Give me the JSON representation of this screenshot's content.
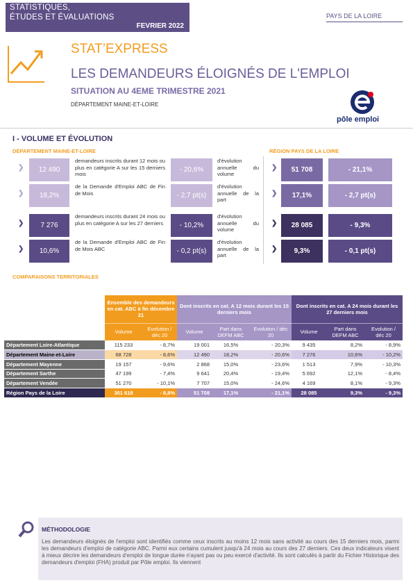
{
  "header": {
    "brand_line1": "STATISTIQUES,",
    "brand_line2": "ÉTUDES ET ÉVALUATIONS",
    "date": "FEVRIER 2022",
    "region": "PAYS DE LA LOIRE",
    "series": "STAT’EXPRESS",
    "title": "LES DEMANDEURS ÉLOIGNÉS DE L'EMPLOI",
    "subtitle": "SITUATION AU 4EME TRIMESTRE 2021",
    "department": "DÉPARTEMENT MAINE-ET-LOIRE",
    "logo": "pôle emploi"
  },
  "section": {
    "title": "I - VOLUME ET ÉVOLUTION",
    "dept_label": "DÉPARTEMENT MAINE-ET-LOIRE",
    "region_label": "RÉGION PAYS DE LA LOIRE",
    "kpis": [
      {
        "value": "12 490",
        "description": "demandeurs inscrits durant 12 mois ou plus en catégorie A sur les 15 derniers mois",
        "change": "- 20,6%",
        "change_label": "d'évolution annuelle du volume",
        "region_value": "51 708",
        "region_change": "- 21,1%"
      },
      {
        "value": "18,2%",
        "description": "de la Demande d'Emploi ABC de Fin de Mois",
        "change": "- 2,7 pt(s)",
        "change_label": "d'évolution annuelle de la part",
        "region_value": "17,1%",
        "region_change": "- 2,7 pt(s)"
      },
      {
        "value": "7 276",
        "description": "demandeurs inscrits durant 24 mois ou plus en catégorie A sur les 27 derniers",
        "change": "- 10,2%",
        "change_label": "d'évolution annuelle du volume",
        "region_value": "28 085",
        "region_change": "- 9,3%"
      },
      {
        "value": "10,6%",
        "description": "de la Demande d'Emploi ABC de Fin de Mois ABC",
        "change": "- 0,2 pt(s)",
        "change_label": "d'évolution annuelle de la part",
        "region_value": "9,3%",
        "region_change": "- 0,1 pt(s)"
      }
    ]
  },
  "comparisons": {
    "title": "COMPARAISONS TERRITORIALES",
    "groups": [
      "Ensemble des demandeurs en cat. ABC à fin décembre 21",
      "Dont inscrits en cat. A 12 mois durant les 15 derniers mois",
      "Dont inscrits en cat. A 24 mois durant les 27 derniers mois"
    ],
    "columns": [
      "Volume",
      "Evolution / déc 20",
      "Volume",
      "Part dans DEFM ABC",
      "Evolution / déc 20",
      "Volume",
      "Part dans DEFM ABC",
      "Evolution / déc 20"
    ],
    "rows": [
      [
        "Département Loire-Atlantique",
        "115 233",
        "- 8,7%",
        "19 001",
        "16,5%",
        "- 20,3%",
        "9 435",
        "8,2%",
        "- 8,9%"
      ],
      [
        "Département Maine-et-Loire",
        "68 728",
        "- 8,6%",
        "12 490",
        "18,2%",
        "- 20,6%",
        "7 276",
        "10,6%",
        "- 10,2%"
      ],
      [
        "Département Mayenne",
        "19 157",
        "- 9,6%",
        "2 868",
        "15,0%",
        "- 23,6%",
        "1 513",
        "7,9%",
        "- 10,3%"
      ],
      [
        "Département Sarthe",
        "47 199",
        "- 7,4%",
        "9 641",
        "20,4%",
        "- 19,4%",
        "5 692",
        "12,1%",
        "- 8,4%"
      ],
      [
        "Département Vendée",
        "51 270",
        "- 10,1%",
        "7 707",
        "15,0%",
        "- 24,6%",
        "4 169",
        "8,1%",
        "- 9,3%"
      ],
      [
        "Région Pays de la Loire",
        "301 618",
        "- 8,8%",
        "51 708",
        "17,1%",
        "- 21,1%",
        "28 085",
        "9,3%",
        "- 9,3%"
      ]
    ]
  },
  "methodology": {
    "title": "MÉTHODOLOGIE",
    "text": "Les demandeurs éloignés de l'emploi sont identifiés comme ceux inscrits au moins 12 mois sans activité au cours des 15 derniers mois, parmi les demandeurs d'emploi de catégorie ABC. Parmi eux certains cumulent jusqu'à 24 mois au cours des 27 derniers. Ces deux indicateurs visent à mieux décrire les demandeurs d'emploi de longue durée n'ayant pas ou peu exercé d'activité. Ils sont calculés à partir du Fichier Historique des demandeurs d'emploi (FHA) produit par Pôle emploi. Ils viennent"
  }
}
